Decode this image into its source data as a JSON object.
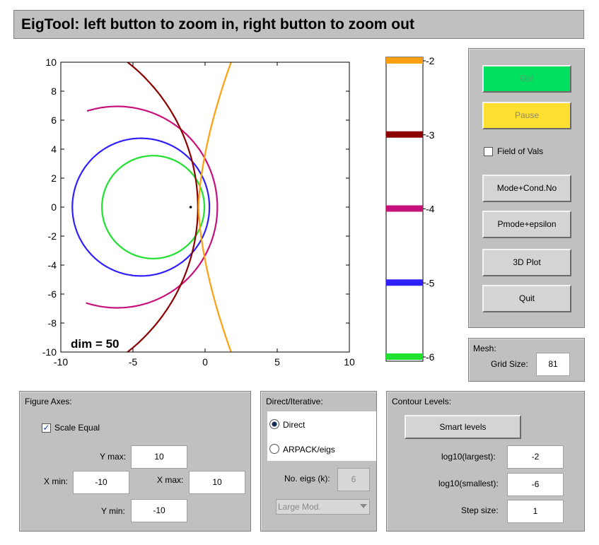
{
  "title": "EigTool: left button to zoom in, right button to zoom out",
  "colors": {
    "go": "#00e060",
    "pause": "#ffe030",
    "panel": "#c0c0c0"
  },
  "plot": {
    "annotation": "dim = 50",
    "x_ticks": [
      "-10",
      "-5",
      "0",
      "5",
      "10"
    ],
    "y_ticks": [
      "10",
      "8",
      "6",
      "4",
      "2",
      "0",
      "-2",
      "-4",
      "-6",
      "-8",
      "-10"
    ],
    "xlim": [
      -10,
      10
    ],
    "ylim": [
      -10,
      10
    ],
    "eigenvalue": [
      -1.0,
      0.0
    ]
  },
  "colorbar": {
    "levels": [
      {
        "label": "-2",
        "color": "#ffa010"
      },
      {
        "label": "-3",
        "color": "#8b0000"
      },
      {
        "label": "-4",
        "color": "#c8107a"
      },
      {
        "label": "-5",
        "color": "#3020ff"
      },
      {
        "label": "-6",
        "color": "#20e030"
      }
    ]
  },
  "controls": {
    "go": "Go!",
    "pause": "Pause",
    "field_of_vals": "Field of Vals",
    "mode_cond": "Mode+Cond.No",
    "pmode_eps": "Pmode+epsilon",
    "plot3d": "3D Plot",
    "quit": "Quit"
  },
  "mesh": {
    "title": "Mesh:",
    "grid_label": "Grid Size:",
    "grid_value": "81"
  },
  "figure_axes": {
    "title": "Figure Axes:",
    "scale_equal": "Scale Equal",
    "ymax_label": "Y max:",
    "ymax": "10",
    "xmin_label": "X min:",
    "xmin": "-10",
    "xmax_label": "X max:",
    "xmax": "10",
    "ymin_label": "Y min:",
    "ymin": "-10"
  },
  "direct": {
    "title": "Direct/Iterative:",
    "direct": "Direct",
    "arpack": "ARPACK/eigs",
    "neigs_label": "No. eigs (k):",
    "neigs": "6",
    "mode_select": "Large Mod."
  },
  "contours": {
    "title": "Contour Levels:",
    "smart": "Smart  levels",
    "largest_label": "log10(largest):",
    "largest": "-2",
    "smallest_label": "log10(smallest):",
    "smallest": "-6",
    "step_label": "Step size:",
    "step": "1"
  }
}
